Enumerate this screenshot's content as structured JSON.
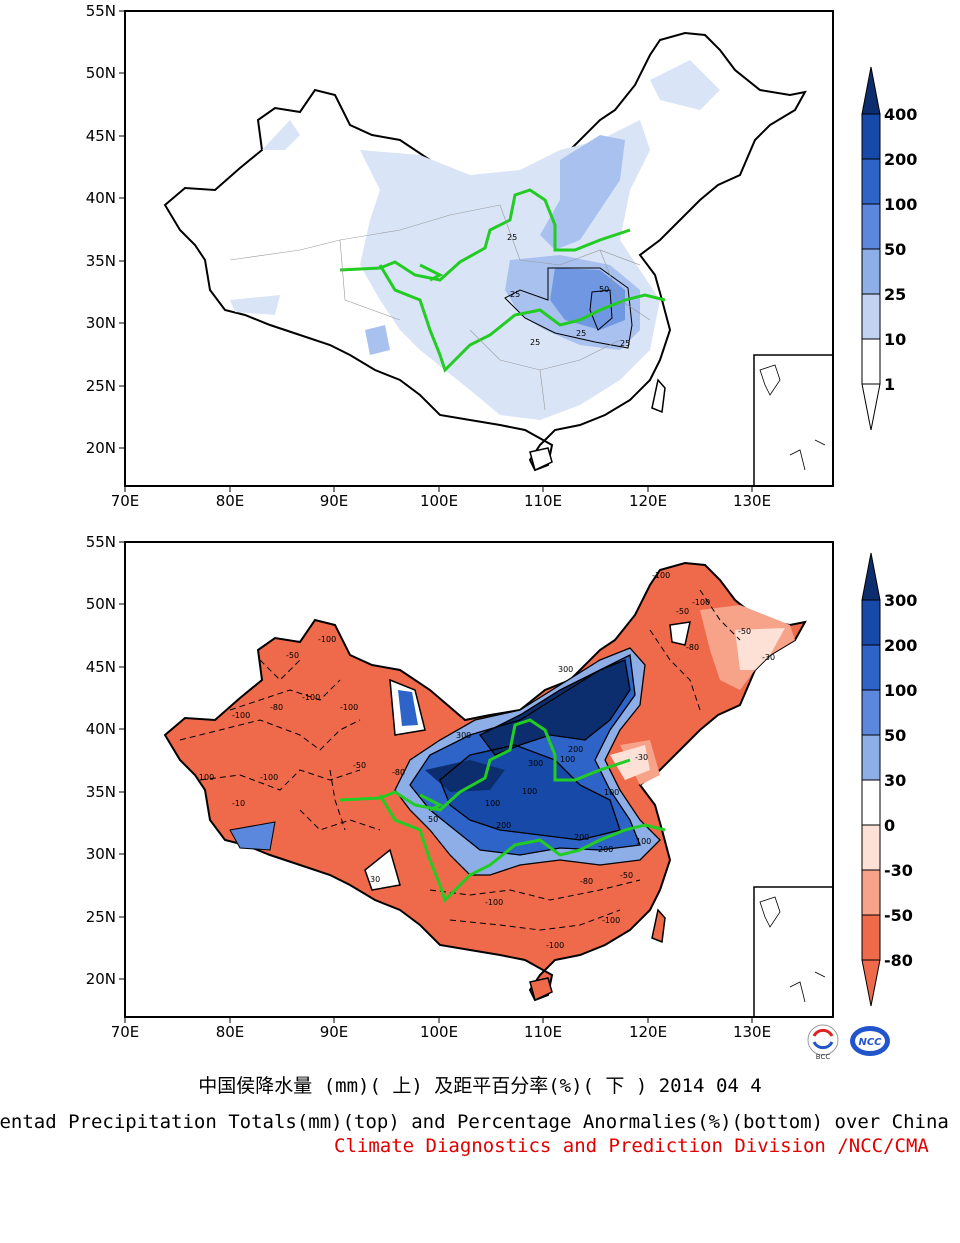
{
  "top_map": {
    "lat_labels": [
      "55N",
      "50N",
      "45N",
      "40N",
      "35N",
      "30N",
      "25N",
      "20N"
    ],
    "lon_labels": [
      "70E",
      "80E",
      "90E",
      "100E",
      "110E",
      "120E",
      "130E"
    ],
    "colorbar": {
      "labels": [
        "400",
        "200",
        "100",
        "50",
        "25",
        "10",
        "1"
      ],
      "colors": [
        "#0d2e6e",
        "#174aa8",
        "#2e64c8",
        "#5b88dc",
        "#8eaee8",
        "#c2d3f2",
        "#ffffff"
      ]
    },
    "contour_labels": [
      "25",
      "25",
      "50",
      "25",
      "25",
      "25"
    ]
  },
  "bottom_map": {
    "lat_labels": [
      "55N",
      "50N",
      "45N",
      "40N",
      "35N",
      "30N",
      "25N",
      "20N"
    ],
    "lon_labels": [
      "70E",
      "80E",
      "90E",
      "100E",
      "110E",
      "120E",
      "130E"
    ],
    "colorbar": {
      "labels": [
        "300",
        "200",
        "100",
        "50",
        "30",
        "0",
        "-30",
        "-50",
        "-80"
      ],
      "colors": [
        "#0d2e6e",
        "#174aa8",
        "#2e64c8",
        "#5b88dc",
        "#8eaee8",
        "#ffffff",
        "#fde0d6",
        "#f7a38a",
        "#ef6a4a"
      ]
    },
    "contour_labels": [
      "-100",
      "-50",
      "-100",
      "-100",
      "-80",
      "-100",
      "-100",
      "-100",
      "-50",
      "-80",
      "300",
      "100",
      "200",
      "100",
      "200",
      "300",
      "100",
      "100",
      "200",
      "200",
      "100",
      "-100",
      "-80",
      "-100",
      "-100",
      "-50",
      "-30",
      "-50",
      "-80",
      "-100",
      "-100",
      "-30",
      "-50",
      "-10",
      "30",
      "300",
      "50"
    ]
  },
  "title": {
    "cn": "中国侯降水量 (mm)( 上) 及距平百分率(%)( 下 ) 2014 04 4",
    "en": "Pentad Precipitation Totals(mm)(top) and Percentage Anormalies(%)(bottom) over China",
    "org": "Climate Diagnostics and Prediction Division /NCC/CMA"
  },
  "logos": [
    "BCC",
    "NCC"
  ]
}
